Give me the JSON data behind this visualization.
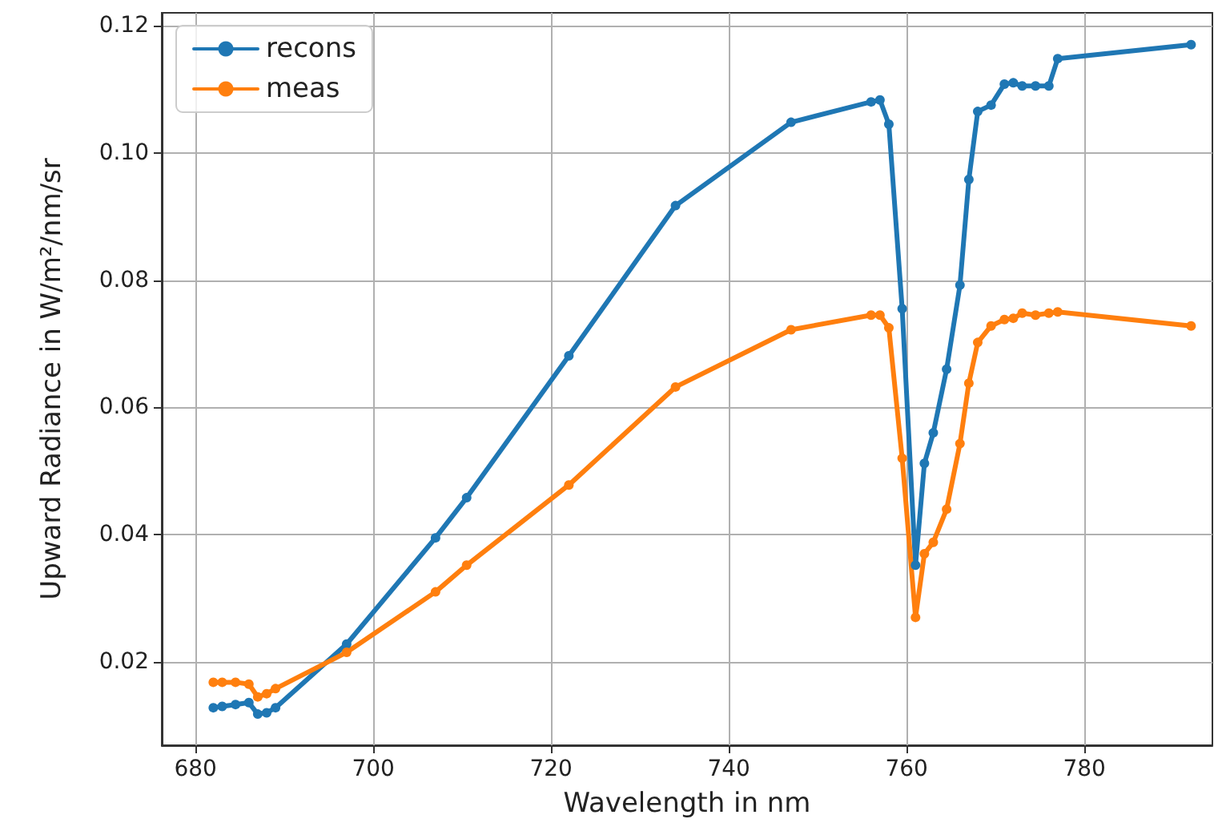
{
  "chart_data": {
    "type": "line",
    "xlabel": "Wavelength in nm",
    "ylabel": "Upward Radiance in W/m²/nm/sr",
    "x": [
      682,
      683,
      684.5,
      686,
      687,
      688,
      689,
      697,
      707,
      710.5,
      722,
      734,
      747,
      756,
      757,
      758,
      759.5,
      761,
      762,
      763,
      764.5,
      766,
      767,
      768,
      769.5,
      771,
      772,
      773,
      774.5,
      776,
      777,
      792
    ],
    "series": [
      {
        "name": "recons",
        "color": "#1f77b4",
        "values": [
          0.0128,
          0.013,
          0.0133,
          0.0136,
          0.0118,
          0.012,
          0.0128,
          0.0228,
          0.0395,
          0.0458,
          0.0681,
          0.0917,
          0.1048,
          0.108,
          0.1083,
          0.1045,
          0.0755,
          0.0352,
          0.0512,
          0.056,
          0.066,
          0.0792,
          0.0958,
          0.1065,
          0.1075,
          0.1108,
          0.111,
          0.1105,
          0.1105,
          0.1105,
          0.1148,
          0.117
        ]
      },
      {
        "name": "meas",
        "color": "#ff7f0e",
        "values": [
          0.0168,
          0.0168,
          0.0168,
          0.0165,
          0.0145,
          0.015,
          0.0158,
          0.0215,
          0.031,
          0.0352,
          0.0478,
          0.0632,
          0.0722,
          0.0745,
          0.0745,
          0.0725,
          0.052,
          0.027,
          0.037,
          0.0388,
          0.044,
          0.0543,
          0.0638,
          0.0702,
          0.0728,
          0.0738,
          0.074,
          0.0748,
          0.0745,
          0.0748,
          0.075,
          0.0728
        ]
      }
    ],
    "xlim": [
      676.2,
      794.4
    ],
    "xticks": [
      680,
      700,
      720,
      740,
      760,
      780
    ],
    "ylim": [
      0.0069,
      0.122
    ],
    "yticks": [
      {
        "value": 0.02,
        "label": "0.02"
      },
      {
        "value": 0.04,
        "label": "0.04"
      },
      {
        "value": 0.06,
        "label": "0.06"
      },
      {
        "value": 0.08,
        "label": "0.08"
      },
      {
        "value": 0.1,
        "label": "0.10"
      },
      {
        "value": 0.12,
        "label": "0.12"
      }
    ],
    "grid": true,
    "legend": "top left",
    "marker": "circle",
    "line_style": "solid"
  }
}
